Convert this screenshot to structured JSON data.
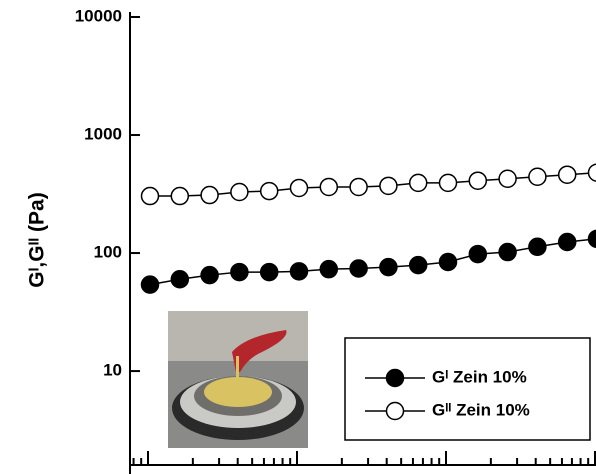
{
  "chart_data": {
    "type": "line",
    "y_label": "Gᴵ,Gᴵᴵ (Pa)",
    "categories": [
      null,
      null,
      null,
      null,
      null,
      null,
      null,
      null,
      null,
      null,
      null,
      null,
      null,
      null,
      null,
      null
    ],
    "y_log": true,
    "ylim": [
      1.6,
      10000
    ],
    "yticks": [
      10,
      100,
      1000,
      10000
    ],
    "legend": "lower right",
    "series": [
      {
        "name": "Gᴵ Zein 10%",
        "color": "#000000",
        "marker": "filled",
        "values": [
          54,
          60,
          65,
          69,
          69,
          70,
          73,
          74,
          76,
          79,
          84,
          98,
          102,
          113,
          124,
          132
        ]
      },
      {
        "name": "Gᴵᴵ Zein 10%",
        "color": "#000000",
        "marker": "open",
        "values": [
          304,
          304,
          310,
          329,
          335,
          356,
          363,
          363,
          371,
          393,
          393,
          410,
          426,
          443,
          461,
          480
        ]
      }
    ]
  }
}
